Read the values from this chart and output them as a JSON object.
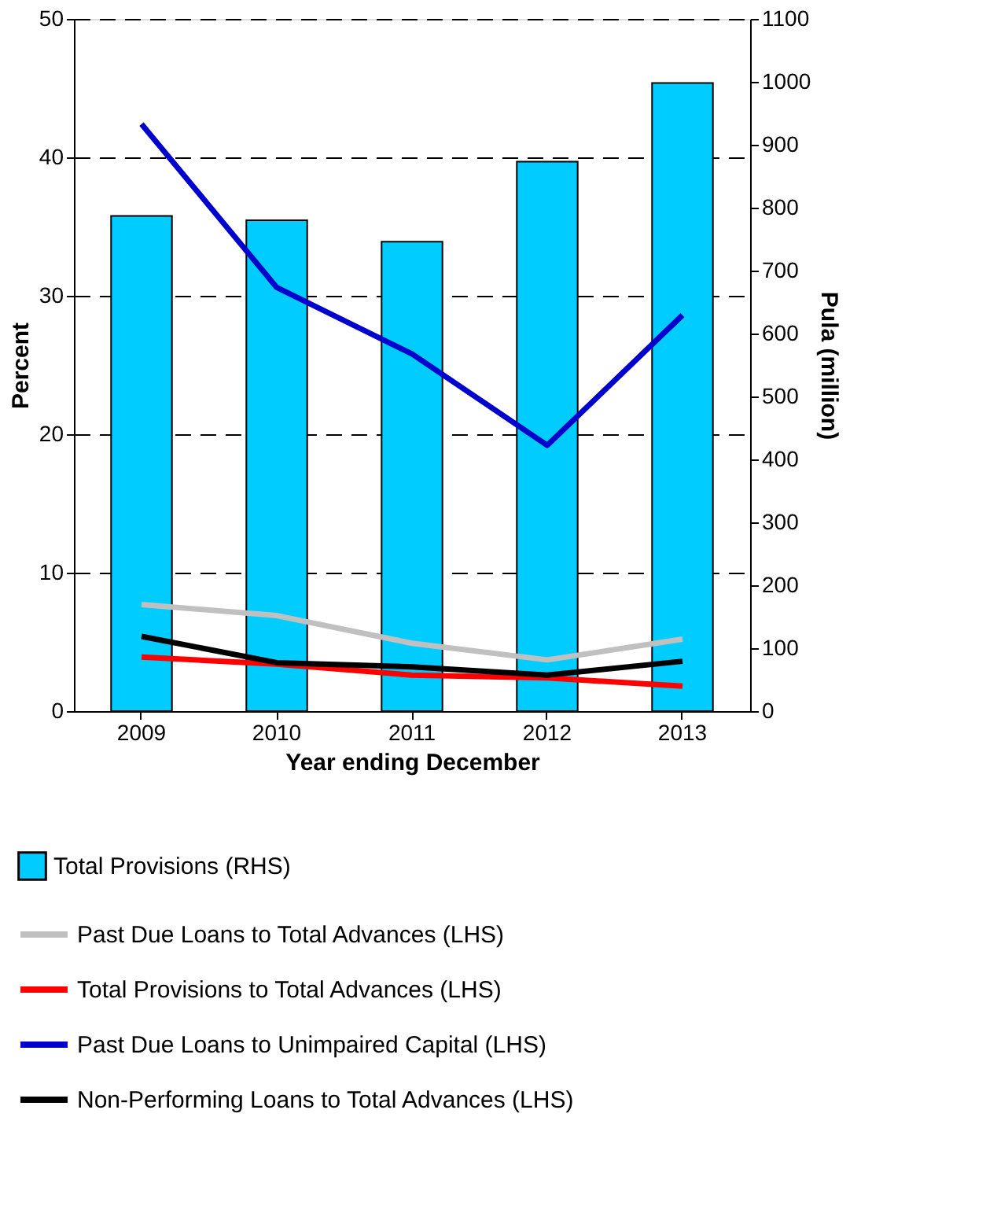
{
  "chart_data": {
    "type": "bar",
    "xlabel": "Year ending December",
    "ylabel": "Percent",
    "y2label": "Pula (million)",
    "categories": [
      "2009",
      "2010",
      "2011",
      "2012",
      "2013"
    ],
    "series": [
      {
        "name": "Total Provisions (RHS)",
        "axis": "y2",
        "color": "#00ccff",
        "values": [
          787,
          780,
          746,
          873,
          998
        ]
      },
      {
        "name": "Past Due Loans to Total Advances (LHS)",
        "type": "line",
        "axis": "y",
        "color": "#c0c0c0",
        "values": [
          7.7,
          6.9,
          4.9,
          3.7,
          5.2
        ]
      },
      {
        "name": "Total Provisions to Total Advances (LHS)",
        "type": "line",
        "axis": "y",
        "color": "#ff0000",
        "values": [
          3.9,
          3.4,
          2.6,
          2.4,
          1.8
        ]
      },
      {
        "name": "Past Due Loans to Unimpaired Capital (LHS)",
        "type": "line",
        "axis": "y",
        "color": "#0000cc",
        "values": [
          42.4,
          30.6,
          25.8,
          19.2,
          28.6
        ]
      },
      {
        "name": "Non-Performing Loans to Total Advances (LHS)",
        "type": "line",
        "axis": "y",
        "color": "#000000",
        "values": [
          5.4,
          3.5,
          3.2,
          2.6,
          3.6
        ]
      }
    ],
    "ylim": [
      0,
      50
    ],
    "yticks": [
      0,
      10,
      20,
      30,
      40,
      50
    ],
    "y2lim": [
      0,
      1100
    ],
    "y2ticks": [
      0,
      100,
      200,
      300,
      400,
      500,
      600,
      700,
      800,
      900,
      1000,
      1100
    ],
    "grid": "y",
    "legend": "bottom",
    "marker": "none",
    "line_style": "solid"
  }
}
